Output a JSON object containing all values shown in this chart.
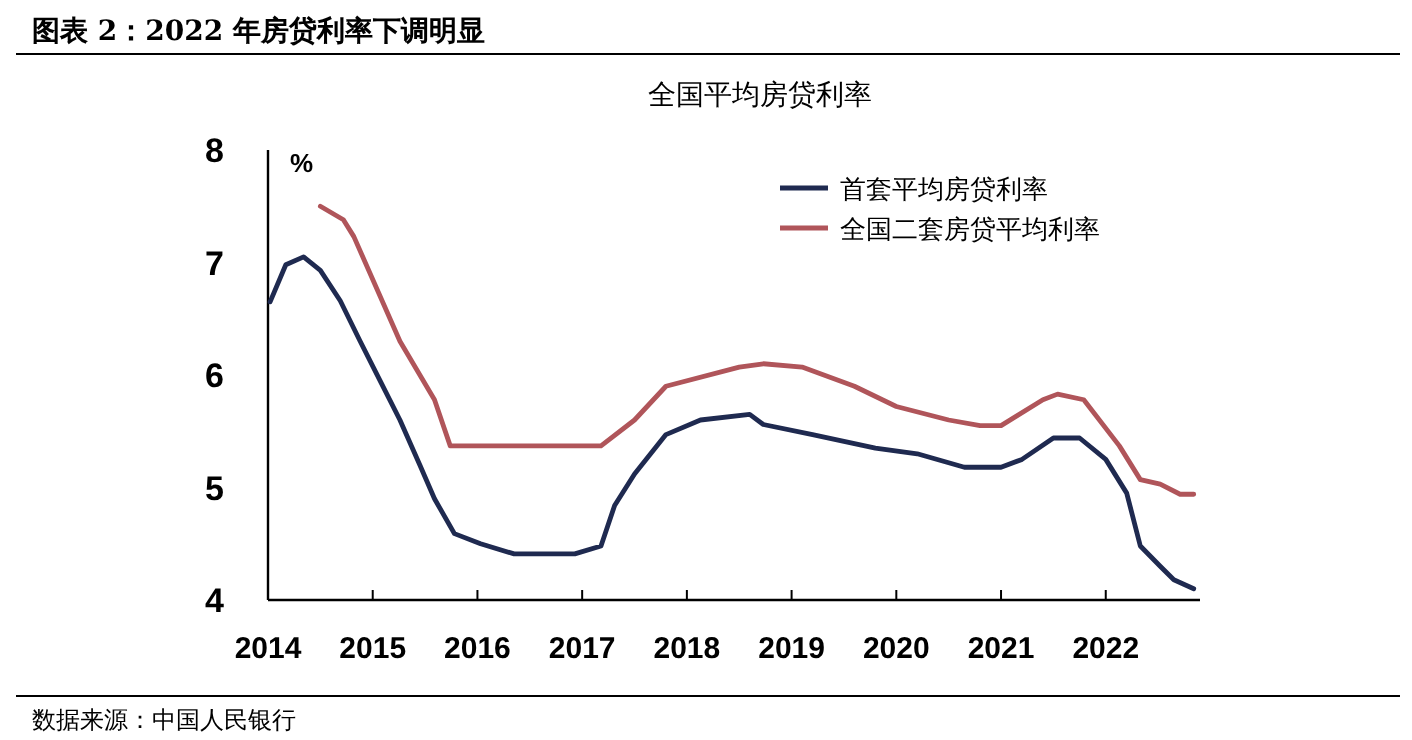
{
  "chart_data": {
    "type": "line",
    "title": "图表 2：2022 年房贷利率下调明显",
    "subtitle": "全国平均房贷利率",
    "ylabel": "%",
    "annotations": [
      "数据来源：中国人民银行"
    ],
    "xlim": [
      2014,
      2022.9
    ],
    "xticks": [
      2014,
      2015,
      2016,
      2017,
      2018,
      2019,
      2020,
      2021,
      2022
    ],
    "ylim": [
      4,
      8
    ],
    "yticks": [
      4,
      5,
      6,
      7,
      8
    ],
    "legend": "top right",
    "grid": false,
    "marker": "none",
    "line_style": "solid",
    "series": [
      {
        "name": "首套平均房贷利率",
        "color": "#1f2a50",
        "x": [
          2014.02,
          2014.17,
          2014.34,
          2014.5,
          2014.69,
          2014.88,
          2015.07,
          2015.26,
          2015.45,
          2015.59,
          2015.78,
          2016.03,
          2016.35,
          2016.93,
          2017.18,
          2017.31,
          2017.5,
          2017.8,
          2018.13,
          2018.6,
          2018.73,
          2019.2,
          2019.8,
          2020.2,
          2020.65,
          2021.0,
          2021.2,
          2021.5,
          2021.75,
          2022.0,
          2022.2,
          2022.33,
          2022.52,
          2022.65,
          2022.84
        ],
        "values": [
          6.65,
          6.98,
          7.05,
          6.93,
          6.66,
          6.3,
          5.95,
          5.6,
          5.2,
          4.9,
          4.59,
          4.5,
          4.41,
          4.41,
          4.48,
          4.84,
          5.12,
          5.47,
          5.6,
          5.65,
          5.56,
          5.47,
          5.35,
          5.3,
          5.18,
          5.18,
          5.25,
          5.44,
          5.44,
          5.25,
          4.95,
          4.48,
          4.3,
          4.18,
          4.1
        ]
      },
      {
        "name": "全国二套房贷平均利率",
        "color": "#b0555a",
        "x": [
          2014.5,
          2014.72,
          2014.82,
          2015.26,
          2015.59,
          2015.74,
          2016.5,
          2017.18,
          2017.5,
          2017.8,
          2018.5,
          2018.73,
          2019.1,
          2019.6,
          2020.0,
          2020.5,
          2020.8,
          2021.0,
          2021.4,
          2021.54,
          2021.79,
          2022.13,
          2022.33,
          2022.52,
          2022.71,
          2022.84
        ],
        "values": [
          7.5,
          7.38,
          7.23,
          6.3,
          5.78,
          5.37,
          5.37,
          5.37,
          5.6,
          5.9,
          6.07,
          6.1,
          6.07,
          5.9,
          5.72,
          5.6,
          5.55,
          5.55,
          5.78,
          5.83,
          5.78,
          5.37,
          5.07,
          5.03,
          4.94,
          4.94
        ]
      }
    ]
  }
}
